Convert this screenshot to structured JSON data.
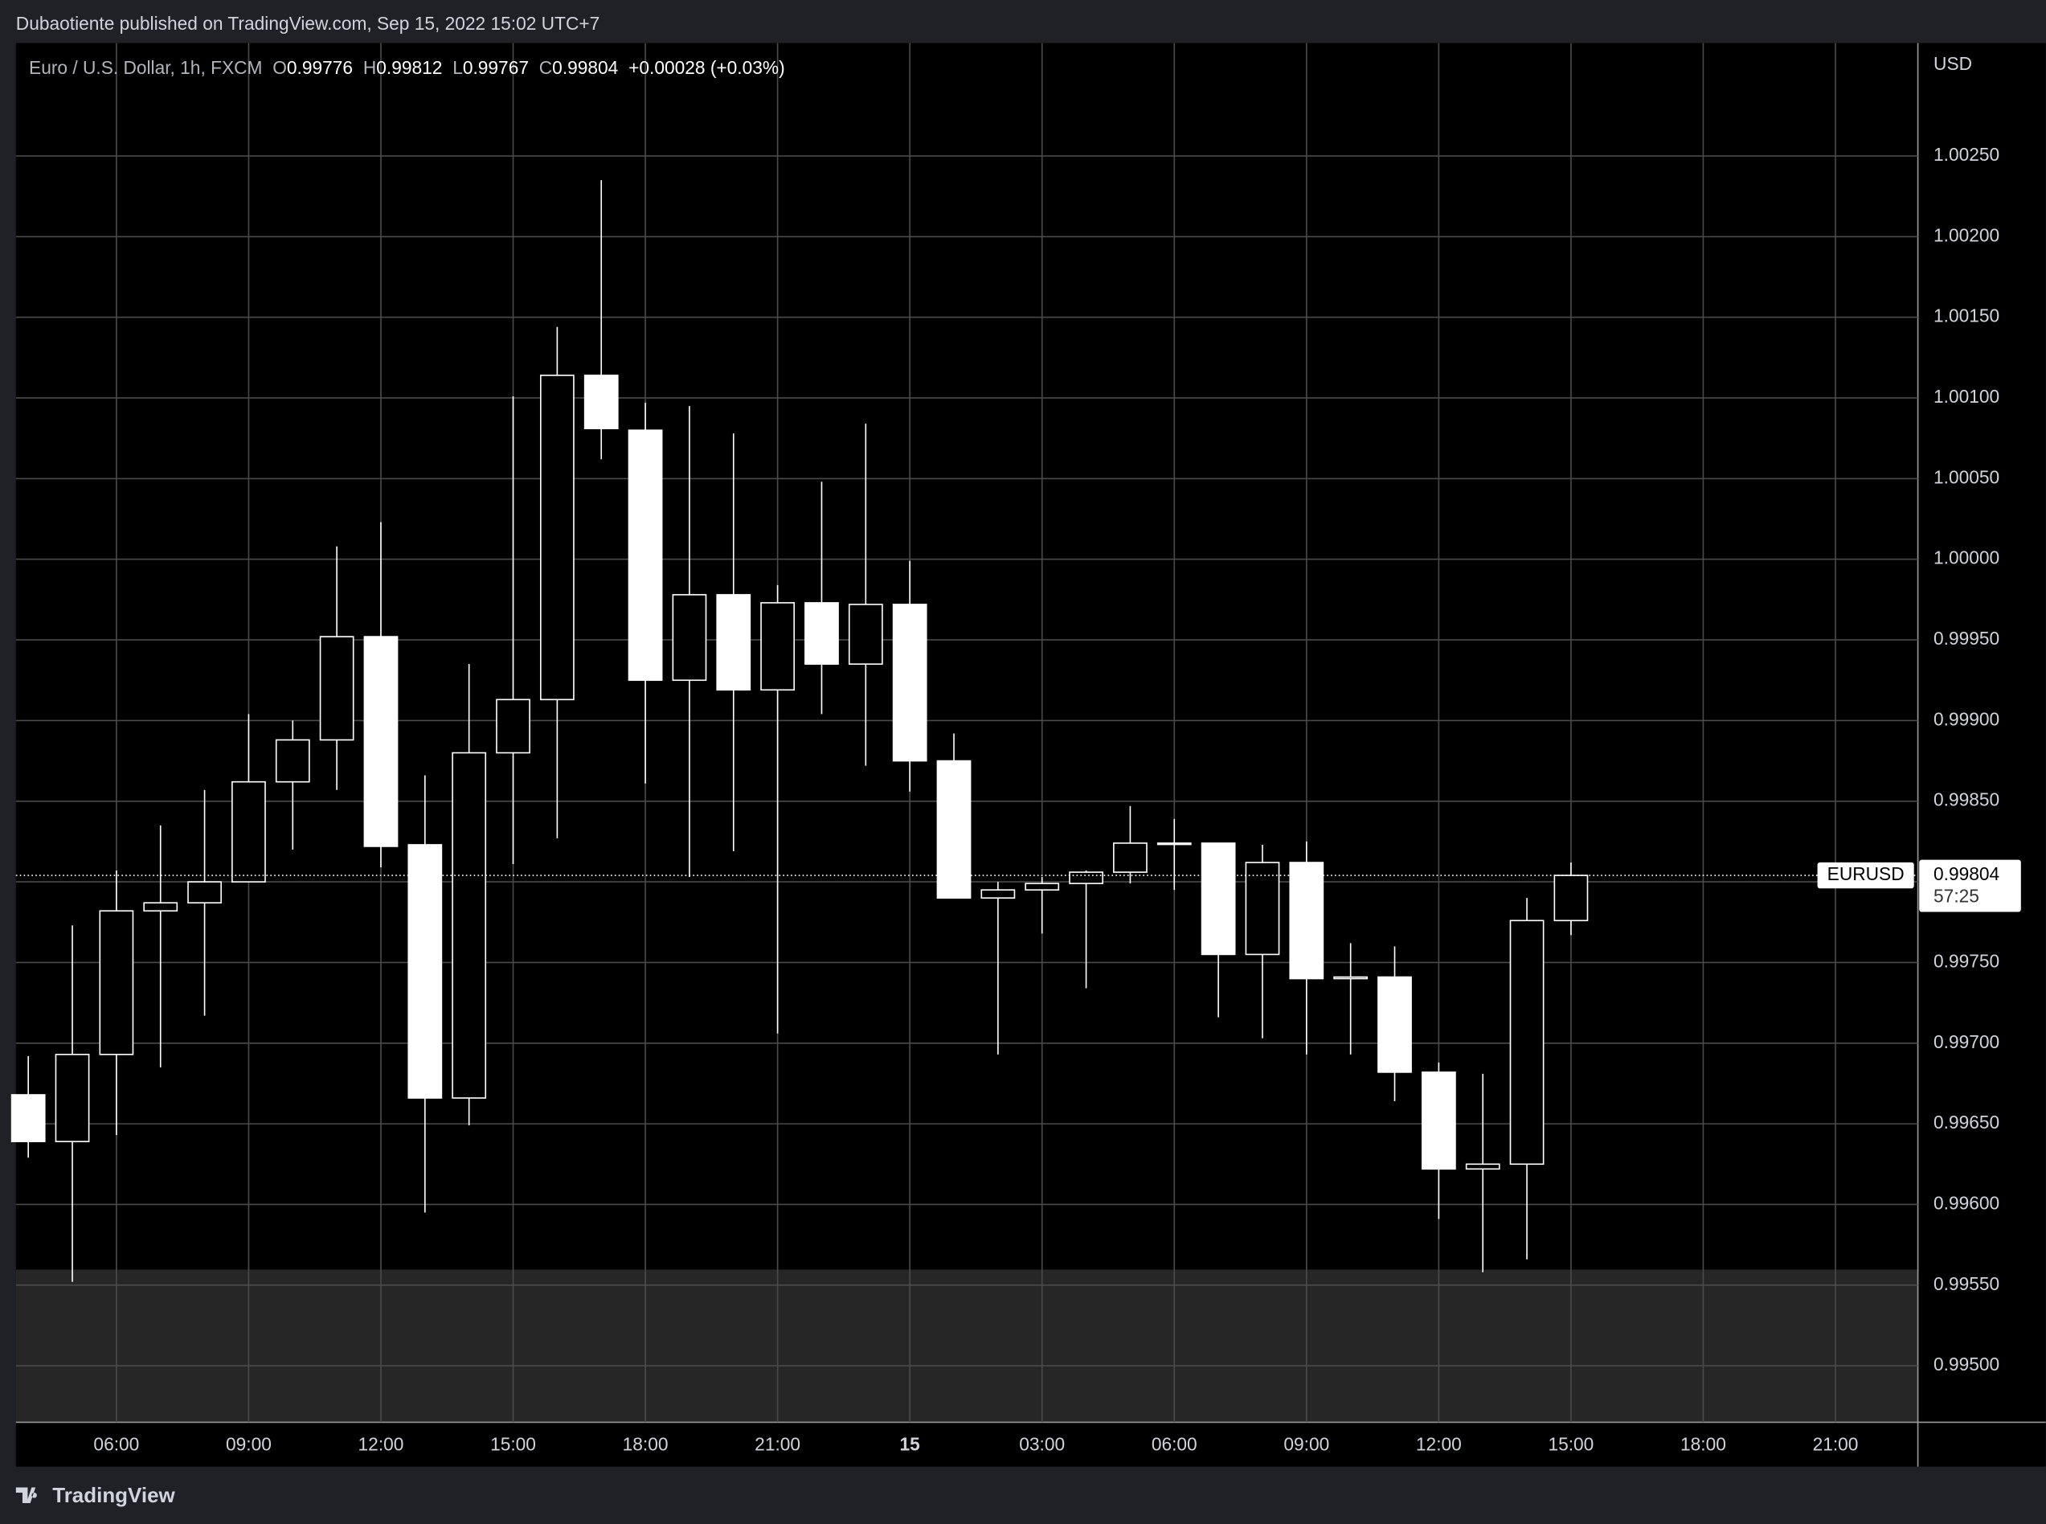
{
  "header": {
    "publisher": "Dubaotiente published on TradingView.com, Sep 15, 2022 15:02 UTC+7"
  },
  "legend": {
    "symbol": "Euro / U.S. Dollar, 1h, FXCM",
    "open_label": "O",
    "open": 0.99776,
    "high_label": "H",
    "high": 0.99812,
    "low_label": "L",
    "low": 0.99767,
    "close_label": "C",
    "close": 0.99804,
    "change": "+0.00028 (+0.03%)"
  },
  "price_axis": {
    "currency": "USD",
    "ticker": "EURUSD",
    "countdown": "57:25"
  },
  "footer": {
    "brand": "TradingView"
  },
  "chart_data": {
    "type": "candlestick",
    "color": "#ffffff",
    "grid": true,
    "x": [
      4,
      5,
      6,
      7,
      8,
      9,
      10,
      11,
      12,
      13,
      14,
      15,
      16,
      17,
      18,
      19,
      20,
      21,
      22,
      23,
      24,
      25,
      26,
      27,
      28,
      29,
      30,
      31,
      32,
      33,
      34,
      35,
      36,
      37,
      38,
      39
    ],
    "open": [
      0.99668,
      0.99639,
      0.99693,
      0.99782,
      0.99787,
      0.998,
      0.99862,
      0.99888,
      0.99952,
      0.99823,
      0.99666,
      0.9988,
      0.99913,
      1.00114,
      1.0008,
      0.99925,
      0.99978,
      0.99919,
      0.99973,
      0.99935,
      0.99972,
      0.99875,
      0.9979,
      0.99795,
      0.99799,
      0.99806,
      0.99824,
      0.99824,
      0.99755,
      0.99812,
      0.9974,
      0.99741,
      0.99682,
      0.99622,
      0.99625,
      0.99776
    ],
    "high": [
      0.99692,
      0.99773,
      0.99807,
      0.99835,
      0.99857,
      0.99904,
      0.999,
      1.00008,
      1.00023,
      0.99866,
      0.99935,
      1.00101,
      1.00144,
      1.00235,
      1.00097,
      1.00095,
      1.00078,
      0.99984,
      1.00048,
      1.00084,
      0.99999,
      0.99892,
      0.998,
      0.99803,
      0.99807,
      0.99847,
      0.99839,
      0.99824,
      0.99823,
      0.99825,
      0.99762,
      0.9976,
      0.99688,
      0.99681,
      0.9979,
      0.99812
    ],
    "low": [
      0.99629,
      0.99552,
      0.99643,
      0.99685,
      0.99717,
      0.998,
      0.9982,
      0.99857,
      0.99809,
      0.99595,
      0.99649,
      0.99811,
      0.99827,
      1.00062,
      0.99861,
      0.99803,
      0.99819,
      0.99706,
      0.99904,
      0.99872,
      0.99856,
      0.9979,
      0.99693,
      0.99768,
      0.99734,
      0.99799,
      0.99795,
      0.99716,
      0.99703,
      0.99693,
      0.99693,
      0.99664,
      0.99591,
      0.99558,
      0.99566,
      0.99767
    ],
    "close": [
      0.99639,
      0.99693,
      0.99782,
      0.99787,
      0.998,
      0.99862,
      0.99888,
      0.99952,
      0.99822,
      0.99666,
      0.9988,
      0.99913,
      1.00114,
      1.00081,
      0.99925,
      0.99978,
      0.99919,
      0.99973,
      0.99935,
      0.99972,
      0.99875,
      0.9979,
      0.99795,
      0.99799,
      0.99806,
      0.99824,
      0.99824,
      0.99755,
      0.99812,
      0.9974,
      0.99741,
      0.99682,
      0.99622,
      0.99625,
      0.99776,
      0.99804
    ],
    "last_price": 0.99804,
    "xlim": [
      3.72,
      46.87
    ],
    "xticks": [
      {
        "value": 6,
        "label": "06:00"
      },
      {
        "value": 9,
        "label": "09:00"
      },
      {
        "value": 12,
        "label": "12:00"
      },
      {
        "value": 15,
        "label": "15:00"
      },
      {
        "value": 18,
        "label": "18:00"
      },
      {
        "value": 21,
        "label": "21:00"
      },
      {
        "value": 24,
        "label": "15"
      },
      {
        "value": 27,
        "label": "03:00"
      },
      {
        "value": 30,
        "label": "06:00"
      },
      {
        "value": 33,
        "label": "09:00"
      },
      {
        "value": 36,
        "label": "12:00"
      },
      {
        "value": 39,
        "label": "15:00"
      },
      {
        "value": 42,
        "label": "18:00"
      },
      {
        "value": 45,
        "label": "21:00"
      }
    ],
    "ylim": [
      0.99465,
      1.0032
    ],
    "yticks": [
      {
        "value": 1.0025,
        "label": "1.00250"
      },
      {
        "value": 1.002,
        "label": "1.00200"
      },
      {
        "value": 1.0015,
        "label": "1.00150"
      },
      {
        "value": 1.001,
        "label": "1.00100"
      },
      {
        "value": 1.0005,
        "label": "1.00050"
      },
      {
        "value": 1.0,
        "label": "1.00000"
      },
      {
        "value": 0.9995,
        "label": "0.99950"
      },
      {
        "value": 0.999,
        "label": "0.99900"
      },
      {
        "value": 0.9985,
        "label": "0.99850"
      },
      {
        "value": 0.998,
        "label": "0.99800"
      },
      {
        "value": 0.9975,
        "label": "0.99750"
      },
      {
        "value": 0.997,
        "label": "0.99700"
      },
      {
        "value": 0.9965,
        "label": "0.99650"
      },
      {
        "value": 0.996,
        "label": "0.99600"
      },
      {
        "value": 0.9955,
        "label": "0.99550"
      },
      {
        "value": 0.995,
        "label": "0.99500"
      }
    ]
  }
}
